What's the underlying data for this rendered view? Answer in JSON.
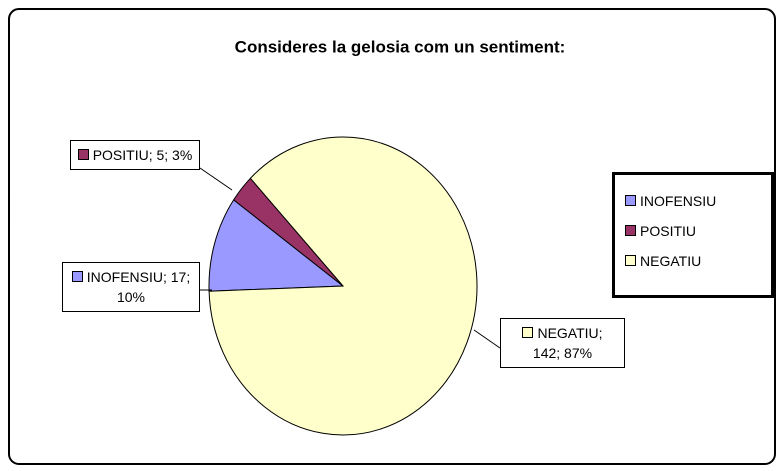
{
  "chart_data": {
    "type": "pie",
    "title": "Consideres la gelosia com un sentiment:",
    "categories": [
      "INOFENSIU",
      "POSITIU",
      "NEGATIU"
    ],
    "values": [
      17,
      5,
      142
    ],
    "value_labels": [
      "INOFENSIU; 17; 10%",
      "POSITIU; 5; 3%",
      "NEGATIU; 142; 87%"
    ],
    "colors": [
      "#9999ff",
      "#993366",
      "#ffffcc"
    ],
    "legend": "right"
  }
}
